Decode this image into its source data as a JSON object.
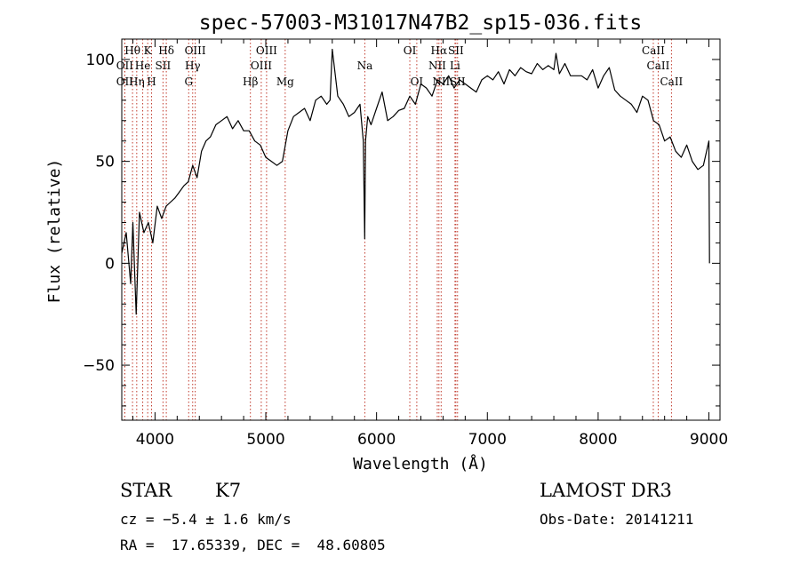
{
  "chart_data": {
    "type": "line",
    "title": "spec-57003-M31017N47B2_sp15-036.fits",
    "xlabel": "Wavelength (Å)",
    "ylabel": "Flux (relative)",
    "xlim": [
      3700,
      9100
    ],
    "ylim": [
      -77,
      110
    ],
    "x_ticks": [
      {
        "value": 4000,
        "label": "4000"
      },
      {
        "value": 5000,
        "label": "5000"
      },
      {
        "value": 6000,
        "label": "6000"
      },
      {
        "value": 7000,
        "label": "7000"
      },
      {
        "value": 8000,
        "label": "8000"
      },
      {
        "value": 9000,
        "label": "9000"
      }
    ],
    "y_ticks": [
      {
        "value": -50,
        "label": "−50"
      },
      {
        "value": 0,
        "label": "0"
      },
      {
        "value": 50,
        "label": "50"
      },
      {
        "value": 100,
        "label": "100"
      }
    ],
    "series": [
      {
        "name": "flux",
        "x": [
          3700,
          3740,
          3780,
          3800,
          3830,
          3860,
          3900,
          3940,
          3980,
          4020,
          4060,
          4100,
          4140,
          4180,
          4220,
          4260,
          4300,
          4340,
          4380,
          4420,
          4460,
          4500,
          4550,
          4600,
          4650,
          4700,
          4750,
          4800,
          4850,
          4900,
          4950,
          5000,
          5050,
          5100,
          5150,
          5200,
          5250,
          5300,
          5350,
          5400,
          5450,
          5500,
          5550,
          5580,
          5600,
          5650,
          5700,
          5750,
          5800,
          5850,
          5880,
          5893,
          5900,
          5920,
          5950,
          6000,
          6050,
          6100,
          6150,
          6200,
          6250,
          6300,
          6350,
          6400,
          6450,
          6500,
          6550,
          6600,
          6650,
          6700,
          6750,
          6800,
          6850,
          6900,
          6950,
          7000,
          7050,
          7100,
          7150,
          7200,
          7250,
          7300,
          7350,
          7400,
          7450,
          7500,
          7550,
          7600,
          7620,
          7650,
          7700,
          7750,
          7800,
          7850,
          7900,
          7950,
          8000,
          8050,
          8100,
          8150,
          8200,
          8250,
          8300,
          8350,
          8400,
          8450,
          8500,
          8550,
          8600,
          8650,
          8700,
          8750,
          8800,
          8850,
          8900,
          8950,
          9000,
          9005
        ],
        "y": [
          5,
          15,
          -10,
          20,
          -25,
          25,
          15,
          20,
          10,
          28,
          22,
          28,
          30,
          32,
          35,
          38,
          40,
          48,
          42,
          55,
          60,
          62,
          68,
          70,
          72,
          66,
          70,
          65,
          65,
          60,
          58,
          52,
          50,
          48,
          50,
          65,
          72,
          74,
          76,
          70,
          80,
          82,
          78,
          80,
          105,
          82,
          78,
          72,
          74,
          78,
          60,
          12,
          60,
          72,
          68,
          76,
          84,
          70,
          72,
          75,
          76,
          82,
          78,
          88,
          86,
          82,
          90,
          88,
          92,
          86,
          90,
          88,
          86,
          84,
          90,
          92,
          90,
          94,
          88,
          95,
          92,
          96,
          94,
          93,
          98,
          95,
          97,
          95,
          103,
          93,
          98,
          92,
          92,
          92,
          90,
          95,
          86,
          92,
          96,
          85,
          82,
          80,
          78,
          74,
          82,
          80,
          70,
          68,
          60,
          62,
          55,
          52,
          58,
          50,
          46,
          48,
          60,
          0
        ]
      }
    ],
    "emission_lines": [
      {
        "name": "Hθ",
        "wavelength": 3797,
        "row": 1
      },
      {
        "name": "OII",
        "wavelength": 3727,
        "row": 2
      },
      {
        "name": "OII",
        "wavelength": 3727,
        "row": 3
      },
      {
        "name": "Hη",
        "wavelength": 3835,
        "row": 3
      },
      {
        "name": "He",
        "wavelength": 3889,
        "row": 2
      },
      {
        "name": "K",
        "wavelength": 3934,
        "row": 1
      },
      {
        "name": "H",
        "wavelength": 3969,
        "row": 3
      },
      {
        "name": "SII",
        "wavelength": 4072,
        "row": 2
      },
      {
        "name": "Hδ",
        "wavelength": 4102,
        "row": 1
      },
      {
        "name": "OIII",
        "wavelength": 4363,
        "row": 1
      },
      {
        "name": "Hγ",
        "wavelength": 4340,
        "row": 2
      },
      {
        "name": "G",
        "wavelength": 4304,
        "row": 3
      },
      {
        "name": "Hβ",
        "wavelength": 4861,
        "row": 3
      },
      {
        "name": "OIII",
        "wavelength": 5007,
        "row": 1
      },
      {
        "name": "OIII",
        "wavelength": 4959,
        "row": 2
      },
      {
        "name": "Mg",
        "wavelength": 5175,
        "row": 3
      },
      {
        "name": "Na",
        "wavelength": 5894,
        "row": 2
      },
      {
        "name": "OI",
        "wavelength": 6300,
        "row": 1
      },
      {
        "name": "OI",
        "wavelength": 6363,
        "row": 3
      },
      {
        "name": "Hα",
        "wavelength": 6563,
        "row": 1
      },
      {
        "name": "NII",
        "wavelength": 6548,
        "row": 2
      },
      {
        "name": "NII",
        "wavelength": 6583,
        "row": 3
      },
      {
        "name": "SII",
        "wavelength": 6716,
        "row": 1
      },
      {
        "name": "Li",
        "wavelength": 6708,
        "row": 2
      },
      {
        "name": "SII",
        "wavelength": 6731,
        "row": 3
      },
      {
        "name": "CaII",
        "wavelength": 8498,
        "row": 1
      },
      {
        "name": "CaII",
        "wavelength": 8542,
        "row": 2
      },
      {
        "name": "CaII",
        "wavelength": 8662,
        "row": 3
      }
    ]
  },
  "info": {
    "object_class": "STAR",
    "subclass": "K7",
    "survey": "LAMOST DR3",
    "cz": "cz = −5.4 ± 1.6 km/s",
    "obs_date": "Obs-Date: 20141211",
    "coords": "RA =  17.65339, DEC =  48.60805"
  }
}
